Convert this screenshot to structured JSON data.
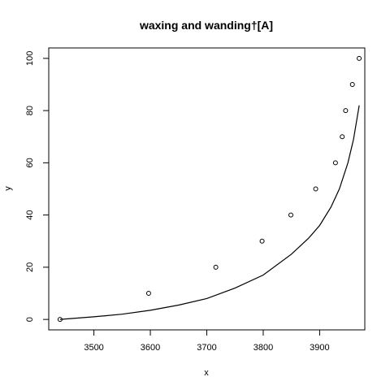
{
  "chart_data": {
    "type": "scatter",
    "title": "waxing and wanding†[A]",
    "xlabel": "x",
    "ylabel": "y",
    "xlim": [
      3420,
      3980
    ],
    "ylim": [
      -4,
      104
    ],
    "x_ticks": [
      3500,
      3600,
      3700,
      3800,
      3900
    ],
    "x_tick_labels": [
      "3500",
      "3600",
      "3700",
      "3800",
      "3900"
    ],
    "y_ticks": [
      0,
      20,
      40,
      60,
      80,
      100
    ],
    "y_tick_labels": [
      "0",
      "20",
      "40",
      "60",
      "80",
      "100"
    ],
    "grid": false,
    "legend": "none",
    "points": [
      {
        "x": 3440,
        "y": 0
      },
      {
        "x": 3597,
        "y": 10
      },
      {
        "x": 3716,
        "y": 20
      },
      {
        "x": 3798,
        "y": 30
      },
      {
        "x": 3849,
        "y": 40
      },
      {
        "x": 3893,
        "y": 50
      },
      {
        "x": 3928,
        "y": 60
      },
      {
        "x": 3940,
        "y": 70
      },
      {
        "x": 3946,
        "y": 80
      },
      {
        "x": 3958,
        "y": 90
      },
      {
        "x": 3970,
        "y": 100
      }
    ],
    "fit_line": [
      {
        "x": 3440,
        "y": 0
      },
      {
        "x": 3500,
        "y": 1
      },
      {
        "x": 3550,
        "y": 2
      },
      {
        "x": 3600,
        "y": 3.5
      },
      {
        "x": 3650,
        "y": 5.5
      },
      {
        "x": 3700,
        "y": 8
      },
      {
        "x": 3750,
        "y": 12
      },
      {
        "x": 3800,
        "y": 17
      },
      {
        "x": 3850,
        "y": 25
      },
      {
        "x": 3880,
        "y": 31
      },
      {
        "x": 3900,
        "y": 36
      },
      {
        "x": 3920,
        "y": 43
      },
      {
        "x": 3935,
        "y": 50
      },
      {
        "x": 3950,
        "y": 60
      },
      {
        "x": 3960,
        "y": 69
      },
      {
        "x": 3970,
        "y": 82
      }
    ]
  }
}
